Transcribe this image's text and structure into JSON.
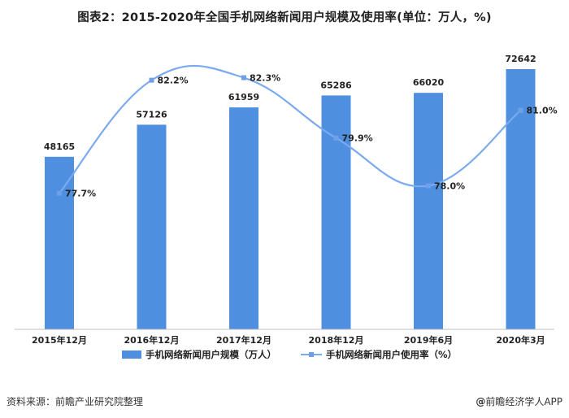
{
  "title": "图表2：2015-2020年全国手机网络新闻用户规模及使用率(单位：万人，%)",
  "source": "资料来源：前瞻产业研究院整理",
  "brand": {
    "mark": "@",
    "name": "前瞻经济学人APP"
  },
  "colors": {
    "bar": "#4f8fe0",
    "line": "#7aaaf0",
    "marker": "#6f9fe8"
  },
  "chart_data": {
    "type": "bar",
    "categories": [
      "2015年12月",
      "2016年12月",
      "2017年12月",
      "2018年12月",
      "2019年6月",
      "2020年3月"
    ],
    "series": [
      {
        "name": "手机网络新闻用户规模（万人）",
        "type": "bar",
        "axis": "left",
        "values": [
          48165,
          57126,
          61959,
          65286,
          66020,
          72642
        ],
        "labels": [
          "48165",
          "57126",
          "61959",
          "65286",
          "66020",
          "72642"
        ]
      },
      {
        "name": "手机网络新闻用户使用率（%）",
        "type": "line",
        "axis": "right",
        "values": [
          77.7,
          82.2,
          82.3,
          79.9,
          78.0,
          81.0
        ],
        "labels": [
          "77.7%",
          "82.2%",
          "82.3%",
          "79.9%",
          "78.0%",
          "81.0%"
        ]
      }
    ],
    "ylim_left": [
      0,
      72642
    ],
    "ylim_right": [
      74.0,
      84.0
    ],
    "legend_position": "bottom",
    "grid": false,
    "smooth_line": true
  }
}
